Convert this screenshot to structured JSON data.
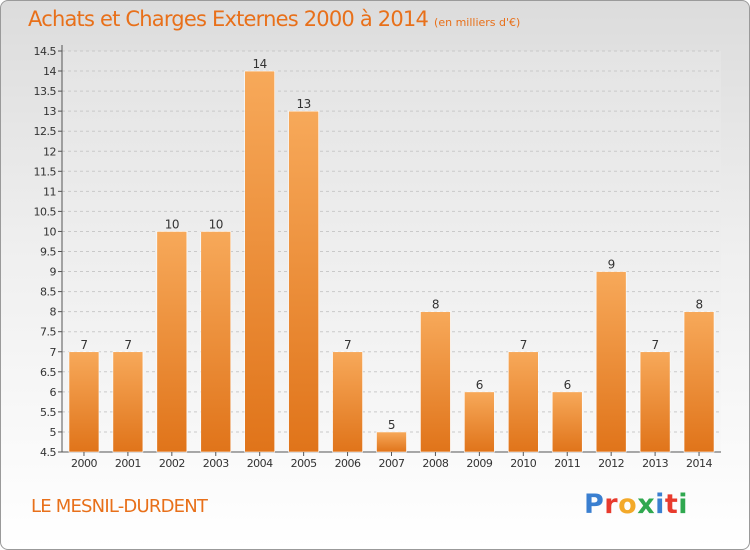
{
  "title": "Achats et Charges Externes 2000 à 2014",
  "unit": "(en milliers d'€)",
  "commune": "LE MESNIL-DURDENT",
  "brand": {
    "text": "Proxiti",
    "letters": [
      "P",
      "r",
      "o",
      "x",
      "i",
      "t",
      "i"
    ],
    "colors": [
      "#3a7fd0",
      "#e83a2d",
      "#f3a92a",
      "#2fa84f",
      "#3a7fd0",
      "#e83a2d",
      "#2fa84f"
    ]
  },
  "chart_data": {
    "type": "bar",
    "categories": [
      "2000",
      "2001",
      "2002",
      "2003",
      "2004",
      "2005",
      "2006",
      "2007",
      "2008",
      "2009",
      "2010",
      "2011",
      "2012",
      "2013",
      "2014"
    ],
    "values": [
      7,
      7,
      10,
      10,
      14,
      13,
      7,
      5,
      8,
      6,
      7,
      6,
      9,
      7,
      8
    ],
    "labels": [
      "7",
      "7",
      "10",
      "10",
      "14",
      "13",
      "7",
      "5",
      "8",
      "6",
      "7",
      "6",
      "9",
      "7",
      "8"
    ],
    "ylim": [
      4.5,
      14.5
    ],
    "yticks": [
      4.5,
      5,
      5.5,
      6,
      6.5,
      7,
      7.5,
      8,
      8.5,
      9,
      9.5,
      10,
      10.5,
      11,
      11.5,
      12,
      12.5,
      13,
      13.5,
      14,
      14.5
    ],
    "ytick_labels": [
      "4.5",
      "5",
      "5.5",
      "6",
      "6.5",
      "7",
      "7.5",
      "8",
      "8.5",
      "9",
      "9.5",
      "10",
      "10.5",
      "11",
      "11.5",
      "12",
      "12.5",
      "13",
      "13.5",
      "14",
      "14.5"
    ],
    "bar_color": "#f08a2c",
    "grid": true
  }
}
